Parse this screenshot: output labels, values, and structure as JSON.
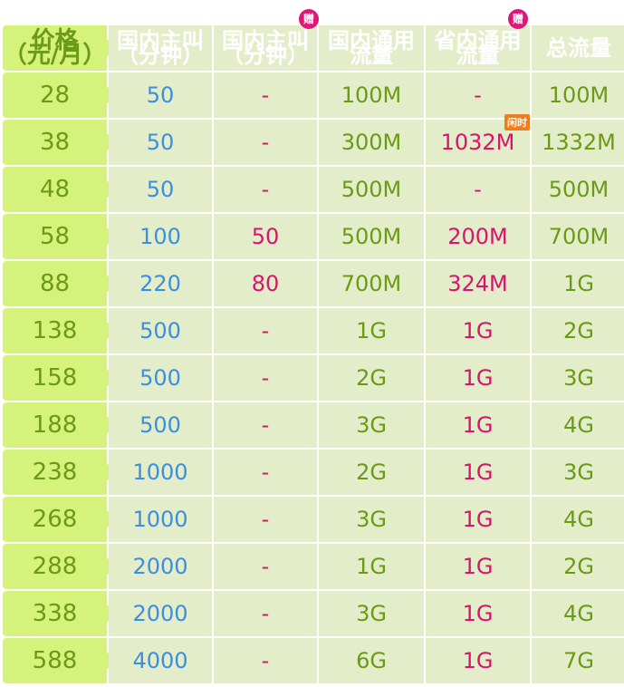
{
  "headers": [
    "价格\n（元/月）",
    "国内主叫\n（分钟）",
    "国内主叫\n（分钟）",
    "国内通用流量",
    "省内通用流量",
    "总流量"
  ],
  "gift_badge": "赠",
  "idle_tag": "闲时",
  "colors": {
    "header": "#8fc31f",
    "price_col": "#d5f27a",
    "cell": "#e4edc9",
    "green_text": "#6b9a16",
    "blue_text": "#3b8fdc",
    "pink_text": "#d6156b",
    "gift_badge": "#e0177a",
    "idle_tag": "#f07c1c"
  },
  "rows": [
    [
      "28",
      "50",
      "-",
      "100M",
      "-",
      "100M"
    ],
    [
      "38",
      "50",
      "-",
      "300M",
      "1032M",
      "1332M"
    ],
    [
      "48",
      "50",
      "-",
      "500M",
      "-",
      "500M"
    ],
    [
      "58",
      "100",
      "50",
      "500M",
      "200M",
      "700M"
    ],
    [
      "88",
      "220",
      "80",
      "700M",
      "324M",
      "1G"
    ],
    [
      "138",
      "500",
      "-",
      "1G",
      "1G",
      "2G"
    ],
    [
      "158",
      "500",
      "-",
      "2G",
      "1G",
      "3G"
    ],
    [
      "188",
      "500",
      "-",
      "3G",
      "1G",
      "4G"
    ],
    [
      "238",
      "1000",
      "-",
      "2G",
      "1G",
      "3G"
    ],
    [
      "268",
      "1000",
      "-",
      "3G",
      "1G",
      "4G"
    ],
    [
      "288",
      "2000",
      "-",
      "1G",
      "1G",
      "2G"
    ],
    [
      "338",
      "2000",
      "-",
      "3G",
      "1G",
      "4G"
    ],
    [
      "588",
      "4000",
      "-",
      "6G",
      "1G",
      "7G"
    ]
  ]
}
